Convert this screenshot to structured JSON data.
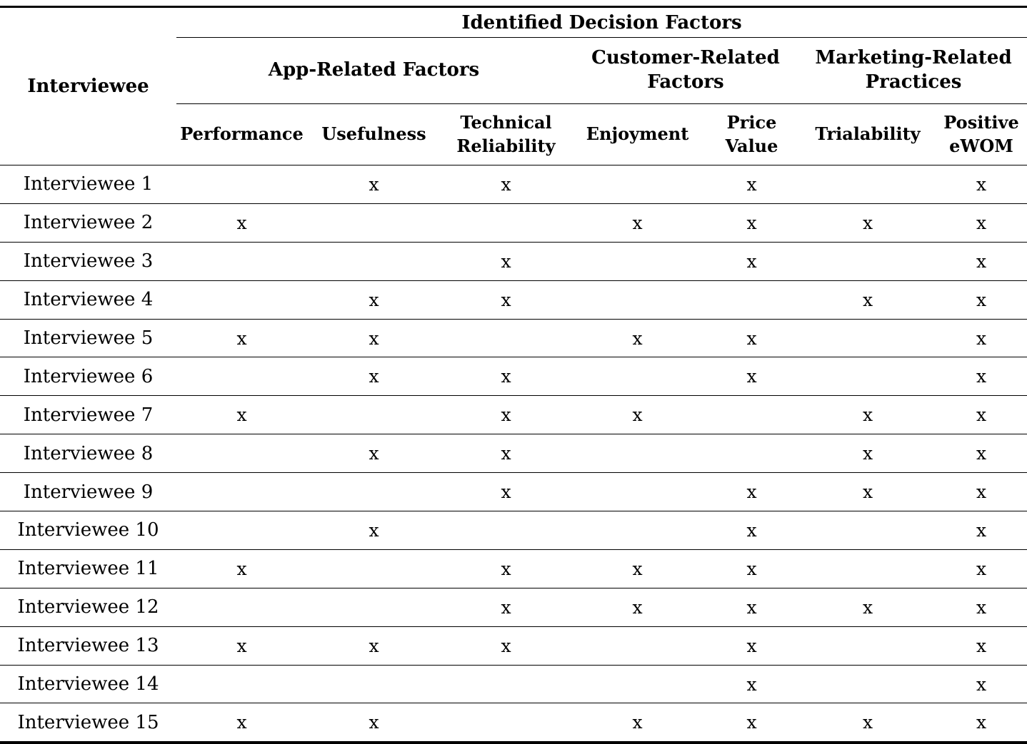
{
  "table": {
    "corner_header": "Interviewee",
    "top_header": "Identified Decision Factors",
    "groups": [
      {
        "label": "App-Related Factors",
        "span": 3
      },
      {
        "label": "Customer-Related Factors",
        "span": 2
      },
      {
        "label": "Marketing-Related Practices",
        "span": 2
      }
    ],
    "columns": [
      "Performance",
      "Usefulness",
      "Technical Reliability",
      "Enjoyment",
      "Price Value",
      "Trialability",
      "Positive eWOM"
    ],
    "mark": "x",
    "text_color": "#000000",
    "background_color": "#ffffff",
    "rows": [
      {
        "label": "Interviewee 1",
        "marks": [
          0,
          1,
          1,
          0,
          1,
          0,
          1
        ]
      },
      {
        "label": "Interviewee 2",
        "marks": [
          1,
          0,
          0,
          1,
          1,
          1,
          1
        ]
      },
      {
        "label": "Interviewee 3",
        "marks": [
          0,
          0,
          1,
          0,
          1,
          0,
          1
        ]
      },
      {
        "label": "Interviewee 4",
        "marks": [
          0,
          1,
          1,
          0,
          0,
          1,
          1
        ]
      },
      {
        "label": "Interviewee 5",
        "marks": [
          1,
          1,
          0,
          1,
          1,
          0,
          1
        ]
      },
      {
        "label": "Interviewee 6",
        "marks": [
          0,
          1,
          1,
          0,
          1,
          0,
          1
        ]
      },
      {
        "label": "Interviewee 7",
        "marks": [
          1,
          0,
          1,
          1,
          0,
          1,
          1
        ]
      },
      {
        "label": "Interviewee 8",
        "marks": [
          0,
          1,
          1,
          0,
          0,
          1,
          1
        ]
      },
      {
        "label": "Interviewee 9",
        "marks": [
          0,
          0,
          1,
          0,
          1,
          1,
          1
        ]
      },
      {
        "label": "Interviewee 10",
        "marks": [
          0,
          1,
          0,
          0,
          1,
          0,
          1
        ]
      },
      {
        "label": "Interviewee 11",
        "marks": [
          1,
          0,
          1,
          1,
          1,
          0,
          1
        ]
      },
      {
        "label": "Interviewee 12",
        "marks": [
          0,
          0,
          1,
          1,
          1,
          1,
          1
        ]
      },
      {
        "label": "Interviewee 13",
        "marks": [
          1,
          1,
          1,
          0,
          1,
          0,
          1
        ]
      },
      {
        "label": "Interviewee 14",
        "marks": [
          0,
          0,
          0,
          0,
          1,
          0,
          1
        ]
      },
      {
        "label": "Interviewee 15",
        "marks": [
          1,
          1,
          0,
          1,
          1,
          1,
          1
        ]
      }
    ]
  }
}
